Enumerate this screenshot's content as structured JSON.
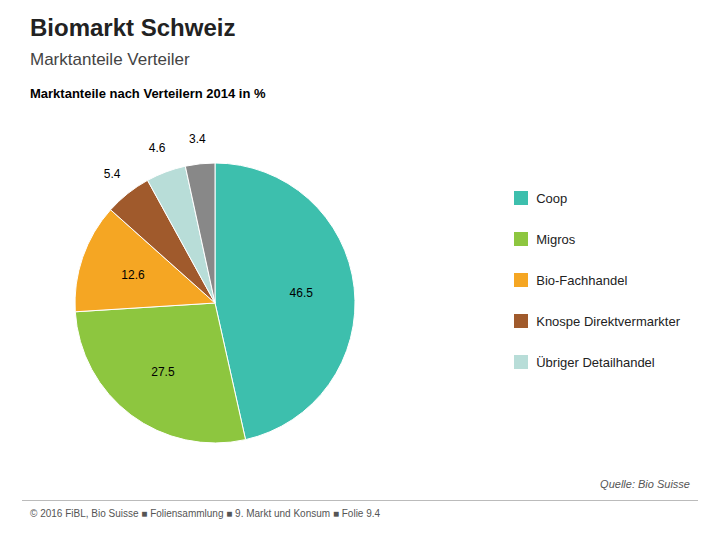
{
  "chart_data": {
    "type": "pie",
    "title": "Biomarkt Schweiz",
    "subtitle": "Marktanteile Verteiler",
    "annotations": [
      "Marktanteile nach Verteilern 2014 in %",
      "Quelle: Bio Suisse",
      "© 2016 FiBL, Bio Suisse  ■  Foliensammlung  ■  9. Markt und Konsum  ■  Folie 9.4"
    ],
    "categories": [
      "Coop",
      "Migros",
      "Bio-Fachhandel",
      "Knospe Direktvermarkter",
      "Übriger Detailhandel",
      null
    ],
    "values": [
      46.5,
      27.5,
      12.6,
      5.4,
      4.6,
      3.4
    ],
    "colors": [
      "#3dbfad",
      "#8dc63f",
      "#f5a623",
      "#a05a2c",
      "#b8ddd8",
      "#888888"
    ],
    "data_labels": true,
    "legend": "right"
  }
}
